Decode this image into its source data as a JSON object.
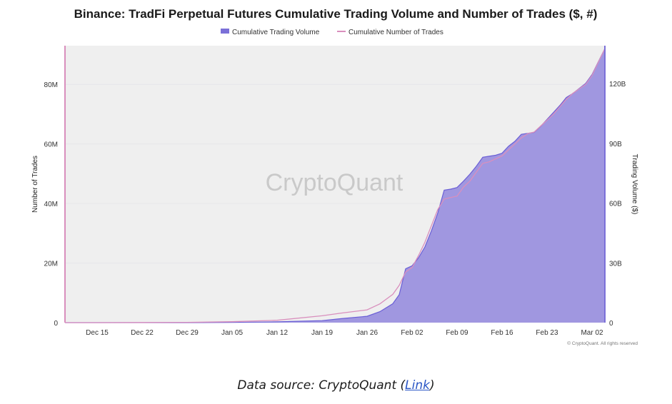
{
  "caption": {
    "prefix": "Data source: CryptoQuant (",
    "link_text": "Link",
    "suffix": ")"
  },
  "watermark": "CryptoQuant",
  "copyright": "© CryptoQuant. All rights reserved",
  "colors": {
    "volume_fill": "#a097e0",
    "volume_line": "#6b5fd6",
    "trades_line": "#d98fbd",
    "plot_bg": "#efefef"
  },
  "chart_data": {
    "type": "area",
    "title": "Binance: TradFi Perpetual Futures Cumulative Trading Volume and Number of Trades ($, #)",
    "ylabel_left": "Number of Trades",
    "ylabel_right": "Trading Volume ($)",
    "x_tick_labels": [
      "Dec 15",
      "Dec 22",
      "Dec 29",
      "Jan 05",
      "Jan 12",
      "Jan 19",
      "Jan 26",
      "Feb 02",
      "Feb 09",
      "Feb 16",
      "Feb 23",
      "Mar 02"
    ],
    "left_axis": {
      "ylim": [
        0,
        93000000
      ],
      "ticks": [
        0,
        20000000,
        40000000,
        60000000,
        80000000
      ],
      "tick_labels": [
        "0",
        "20M",
        "40M",
        "60M",
        "80M"
      ]
    },
    "right_axis": {
      "ylim": [
        0,
        139000000000
      ],
      "ticks": [
        0,
        30000000000,
        60000000000,
        90000000000,
        120000000000
      ],
      "tick_labels": [
        "0",
        "30B",
        "60B",
        "90B",
        "120B"
      ]
    },
    "legend_position": "top-center",
    "grid": true,
    "x_start": "Dec 10",
    "x_end": "Mar 04",
    "series": [
      {
        "name": "Cumulative Trading Volume",
        "axis": "right",
        "style": "area",
        "x": [
          "Dec 10",
          "Dec 15",
          "Dec 22",
          "Dec 29",
          "Jan 05",
          "Jan 12",
          "Jan 19",
          "Jan 22",
          "Jan 26",
          "Jan 28",
          "Jan 30",
          "Jan 31",
          "Feb 01",
          "Feb 02",
          "Feb 03",
          "Feb 04",
          "Feb 05",
          "Feb 06",
          "Feb 07",
          "Feb 08",
          "Feb 09",
          "Feb 10",
          "Feb 11",
          "Feb 12",
          "Feb 13",
          "Feb 14",
          "Feb 15",
          "Feb 16",
          "Feb 17",
          "Feb 18",
          "Feb 19",
          "Feb 20",
          "Feb 21",
          "Feb 22",
          "Feb 23",
          "Feb 24",
          "Feb 25",
          "Feb 26",
          "Feb 27",
          "Feb 28",
          "Mar 01",
          "Mar 02",
          "Mar 03",
          "Mar 04"
        ],
        "values": [
          0,
          0,
          0,
          0,
          0.1,
          0.4,
          1.0,
          2.0,
          3.2,
          5.5,
          9.5,
          14.0,
          27.0,
          28.5,
          32.5,
          38.0,
          46.0,
          55.0,
          66.5,
          67.0,
          67.8,
          71.0,
          74.5,
          78.5,
          83.0,
          83.5,
          84.0,
          85.0,
          88.5,
          91.0,
          94.5,
          95.0,
          95.5,
          98.5,
          102.0,
          105.5,
          109.0,
          113.0,
          115.0,
          117.5,
          120.0,
          124.5,
          131.0,
          137.5
        ],
        "unit": "B"
      },
      {
        "name": "Cumulative Number of Trades",
        "axis": "left",
        "style": "line",
        "x": [
          "Dec 10",
          "Dec 15",
          "Dec 22",
          "Dec 29",
          "Jan 05",
          "Jan 12",
          "Jan 19",
          "Jan 22",
          "Jan 26",
          "Jan 28",
          "Jan 30",
          "Jan 31",
          "Feb 01",
          "Feb 02",
          "Feb 03",
          "Feb 04",
          "Feb 05",
          "Feb 06",
          "Feb 07",
          "Feb 08",
          "Feb 09",
          "Feb 10",
          "Feb 11",
          "Feb 12",
          "Feb 13",
          "Feb 14",
          "Feb 15",
          "Feb 16",
          "Feb 17",
          "Feb 18",
          "Feb 19",
          "Feb 20",
          "Feb 21",
          "Feb 22",
          "Feb 23",
          "Feb 24",
          "Feb 25",
          "Feb 26",
          "Feb 27",
          "Feb 28",
          "Mar 01",
          "Mar 02",
          "Mar 03",
          "Mar 04"
        ],
        "values": [
          0,
          0,
          0.05,
          0.1,
          0.3,
          0.8,
          2.3,
          3.2,
          4.3,
          6.3,
          9.5,
          12.5,
          17.0,
          18.5,
          22.5,
          27.0,
          32.5,
          38.0,
          41.5,
          42.0,
          42.5,
          45.5,
          47.5,
          50.5,
          53.5,
          54.0,
          55.0,
          56.0,
          58.0,
          60.0,
          62.0,
          63.5,
          64.0,
          66.0,
          68.0,
          70.0,
          72.5,
          75.0,
          77.0,
          78.5,
          80.0,
          83.0,
          87.5,
          92.0
        ],
        "unit": "M"
      }
    ]
  }
}
